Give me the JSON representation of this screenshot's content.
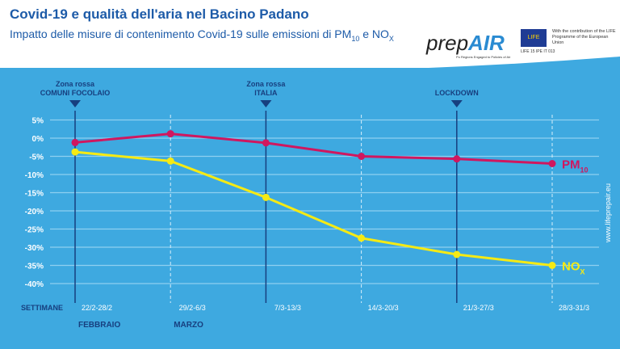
{
  "header": {
    "title": "Covid-19 e qualità dell'aria nel Bacino Padano",
    "subtitle_pre": "Impatto delle misure di contenimento Covid-19 sulle emissioni di PM",
    "subtitle_sub1": "10",
    "subtitle_mid": " e NO",
    "subtitle_sub2": "X"
  },
  "logo": {
    "text_a": "prep",
    "text_b": "AIR",
    "tagline": "Po Regions Engaged to Policies of Air"
  },
  "eu": {
    "flag_text": "LIFE",
    "code": "LIFE 15 IPE IT 013",
    "text": "With the contribution of the LIFE Programme of the European Union"
  },
  "url": "www.lifeprepair.eu",
  "colors": {
    "pm10": "#d0175f",
    "nox": "#f5ea14",
    "grid": "#8fd0f0",
    "marker": "#173f7f"
  },
  "chart_data": {
    "type": "line",
    "title": "Impatto delle misure di contenimento Covid-19 sulle emissioni di PM10 e NOx",
    "xlabel": "SETTIMANE",
    "ylabel": "",
    "categories": [
      "22/2-28/2",
      "29/2-6/3",
      "7/3-13/3",
      "14/3-20/3",
      "21/3-27/3",
      "28/3-31/3"
    ],
    "yticks": [
      "5%",
      "0%",
      "-5%",
      "-10%",
      "-15%",
      "-20%",
      "-25%",
      "-30%",
      "-35%",
      "-40%"
    ],
    "ylim": [
      -40,
      5
    ],
    "series": [
      {
        "name": "PM10",
        "label": "PM",
        "label_sub": "10",
        "values": [
          -1.2,
          1.2,
          -1.3,
          -5.0,
          -5.7,
          -7.0
        ]
      },
      {
        "name": "NOx",
        "label": "NO",
        "label_sub": "X",
        "values": [
          -3.8,
          -6.3,
          -16.3,
          -27.5,
          -32.0,
          -35.0
        ]
      }
    ],
    "events": [
      {
        "index": 0,
        "line1": "Zona rossa",
        "line2": "COMUNI FOCOLAIO"
      },
      {
        "index": 2,
        "line1": "Zona rossa",
        "line2": "ITALIA"
      },
      {
        "index": 4,
        "line1": "",
        "line2": "LOCKDOWN"
      }
    ],
    "months": [
      {
        "index": 0,
        "label": "FEBBRAIO"
      },
      {
        "index": 1,
        "label": "MARZO"
      }
    ],
    "grid": true
  }
}
